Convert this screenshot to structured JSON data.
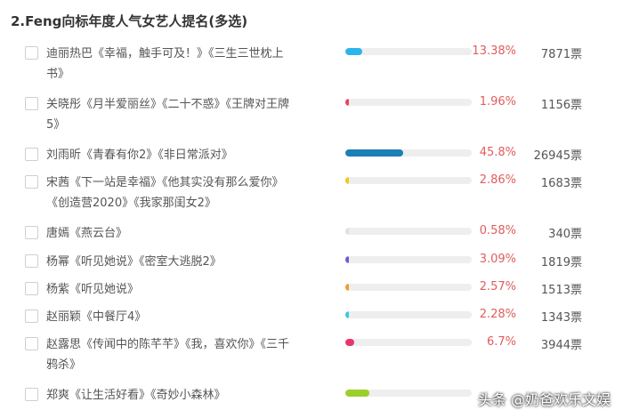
{
  "title": "2.Feng向标年度人气女艺人提名(多选)",
  "options": [
    {
      "name": "迪丽热巴《幸福，触手可及！》《三生三世枕上书》",
      "percent": "13.38%",
      "votes": "7871票",
      "share": 0.1338,
      "color": "#2bb5ec"
    },
    {
      "name": "关晓彤《月半爱丽丝》《二十不惑》《王牌对王牌5》",
      "percent": "1.96%",
      "votes": "1156票",
      "share": 0.0196,
      "color": "#e8455d"
    },
    {
      "name": "刘雨昕《青春有你2》《非日常派对》",
      "percent": "45.8%",
      "votes": "26945票",
      "share": 0.458,
      "color": "#1c7fb5"
    },
    {
      "name": "宋茜《下一站是幸福》《他其实没有那么爱你》《创造营2020》《我家那闺女2》",
      "percent": "2.86%",
      "votes": "1683票",
      "share": 0.0286,
      "color": "#f5c518"
    },
    {
      "name": "唐嫣《燕云台》",
      "percent": "0.58%",
      "votes": "340票",
      "share": 0.0058,
      "color": "#e0e0e0"
    },
    {
      "name": "杨幂《听见她说》《密室大逃脱2》",
      "percent": "3.09%",
      "votes": "1819票",
      "share": 0.0309,
      "color": "#6f5bd6"
    },
    {
      "name": "杨紫《听见她说》",
      "percent": "2.57%",
      "votes": "1513票",
      "share": 0.0257,
      "color": "#f29a2e"
    },
    {
      "name": "赵丽颖《中餐厅4》",
      "percent": "2.28%",
      "votes": "1343票",
      "share": 0.0228,
      "color": "#3ec8e0"
    },
    {
      "name": "赵露思《传闻中的陈芊芊》《我，喜欢你》《三千鸦杀》",
      "percent": "6.7%",
      "votes": "3944票",
      "share": 0.067,
      "color": "#e8366b"
    },
    {
      "name": "郑爽《让生活好看》《奇妙小森林》",
      "percent": "",
      "votes": "",
      "share": 0.19,
      "color": "#9bcf2a"
    }
  ],
  "watermark": "头条 @奶爸欢乐文娱"
}
